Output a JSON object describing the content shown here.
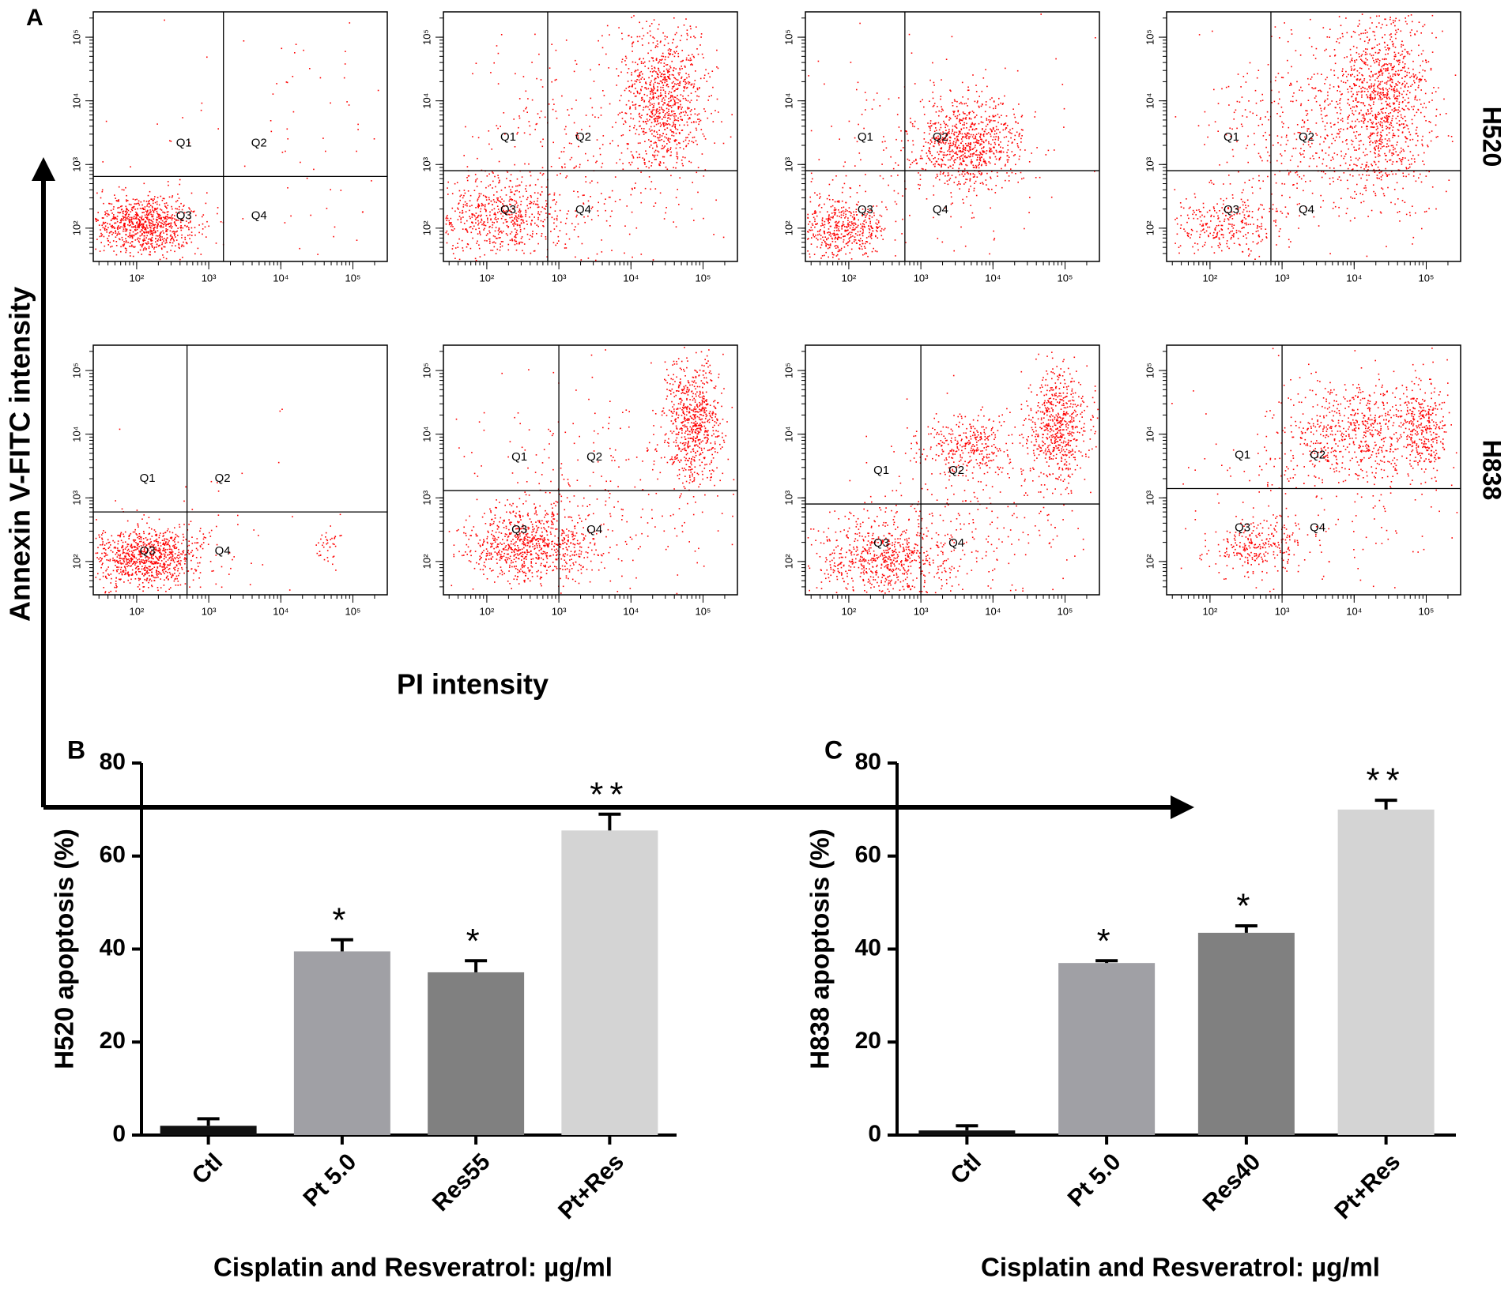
{
  "chart_data": [
    {
      "type": "scatter",
      "label": "A",
      "y_label": "Annexin V-FITC intensity",
      "x_label": "PI intensity",
      "scale": "log",
      "xlim": [
        25,
        300000
      ],
      "ylim": [
        30,
        250000
      ],
      "color": "#ff0000",
      "ticks": [
        {
          "value": 100,
          "label": "10²"
        },
        {
          "value": 1000,
          "label": "10³"
        },
        {
          "value": 10000,
          "label": "10⁴"
        },
        {
          "value": 100000,
          "label": "10⁵"
        }
      ],
      "quadrant_labels": [
        "Q1",
        "Q2",
        "Q3",
        "Q4"
      ],
      "rows": [
        {
          "label": "H520",
          "panels": [
            {
              "gate_x": 1600,
              "gate_y": 650
            },
            {
              "gate_x": 700,
              "gate_y": 800
            },
            {
              "gate_x": 600,
              "gate_y": 800
            },
            {
              "gate_x": 700,
              "gate_y": 800
            }
          ]
        },
        {
          "label": "H838",
          "panels": [
            {
              "gate_x": 500,
              "gate_y": 600
            },
            {
              "gate_x": 1000,
              "gate_y": 1300
            },
            {
              "gate_x": 1000,
              "gate_y": 800
            },
            {
              "gate_x": 1000,
              "gate_y": 1400
            }
          ]
        }
      ]
    },
    {
      "type": "bar",
      "label": "B",
      "y_label": "H520 apoptosis (%)",
      "x_label": "Cisplatin and Resveratrol: µg/ml",
      "categories": [
        "Ctl",
        "Pt 5.0",
        "Res55",
        "Pt+Res"
      ],
      "values": [
        2,
        39.5,
        35,
        65.5
      ],
      "errors": [
        1.5,
        2.5,
        2.5,
        3.5
      ],
      "significance": [
        null,
        "*",
        "*",
        "**"
      ],
      "colors": [
        "#111111",
        "#a0a0a5",
        "#808080",
        "#d4d4d4"
      ],
      "ylim": [
        0,
        80
      ],
      "yticks": [
        0,
        20,
        40,
        60,
        80
      ]
    },
    {
      "type": "bar",
      "label": "C",
      "y_label": "H838 apoptosis (%)",
      "x_label": "Cisplatin and Resveratrol: µg/ml",
      "categories": [
        "Ctl",
        "Pt 5.0",
        "Res40",
        "Pt+Res"
      ],
      "values": [
        1,
        37,
        43.5,
        70
      ],
      "errors": [
        1,
        0.5,
        1.5,
        2
      ],
      "significance": [
        null,
        "*",
        "*",
        "**"
      ],
      "colors": [
        "#111111",
        "#a0a0a5",
        "#808080",
        "#d4d4d4"
      ],
      "ylim": [
        0,
        80
      ],
      "yticks": [
        0,
        20,
        40,
        60,
        80
      ]
    }
  ]
}
